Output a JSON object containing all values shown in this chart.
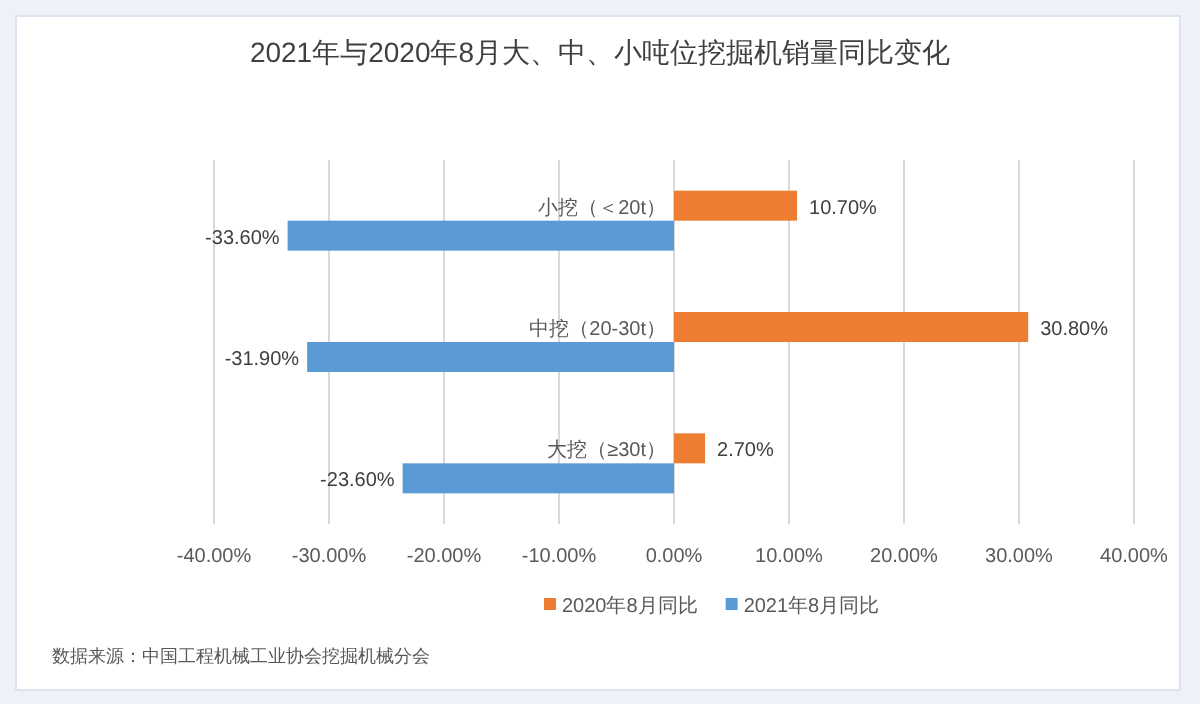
{
  "chart_data": {
    "type": "bar",
    "orientation": "horizontal",
    "title": "2021年与2020年8月大、中、小吨位挖掘机销量同比变化",
    "categories": [
      "小挖（＜20t）",
      "中挖（20-30t）",
      "大挖（≥30t）"
    ],
    "series": [
      {
        "name": "2020年8月同比",
        "color": "#ed7d31",
        "values": [
          10.7,
          30.8,
          2.7
        ],
        "value_labels": [
          "10.70%",
          "30.80%",
          "2.70%"
        ]
      },
      {
        "name": "2021年8月同比",
        "color": "#5b9bd5",
        "values": [
          -33.6,
          -31.9,
          -23.6
        ],
        "value_labels": [
          "-33.60%",
          "-31.90%",
          "-23.60%"
        ]
      }
    ],
    "xlim": [
      -40,
      40
    ],
    "xticks": [
      {
        "value": -40,
        "label": "-40.00%"
      },
      {
        "value": -30,
        "label": "-30.00%"
      },
      {
        "value": -20,
        "label": "-20.00%"
      },
      {
        "value": -10,
        "label": "-10.00%"
      },
      {
        "value": 0,
        "label": "0.00%"
      },
      {
        "value": 10,
        "label": "10.00%"
      },
      {
        "value": 20,
        "label": "20.00%"
      },
      {
        "value": 30,
        "label": "30.00%"
      },
      {
        "value": 40,
        "label": "40.00%"
      }
    ],
    "grid": "x",
    "legend": "bottom",
    "annotations": [
      "数据来源：中国工程机械工业协会挖掘机械分会"
    ]
  }
}
